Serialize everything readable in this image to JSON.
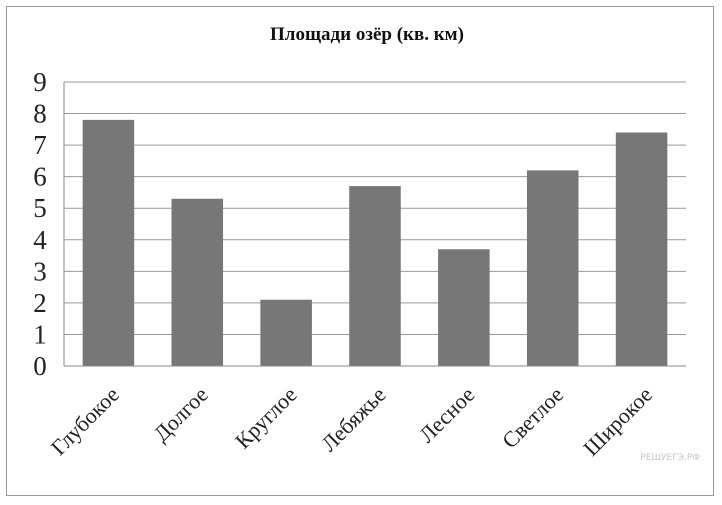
{
  "chart_data": {
    "type": "bar",
    "title": "Площади озёр (кв. км)",
    "categories": [
      "Глубокое",
      "Долгое",
      "Круглое",
      "Лебяжье",
      "Лесное",
      "Светлое",
      "Широкое"
    ],
    "values": [
      7.8,
      5.3,
      2.1,
      5.7,
      3.7,
      6.2,
      7.4
    ],
    "ylim": [
      0,
      9
    ],
    "yticks": [
      "0",
      "1",
      "2",
      "3",
      "4",
      "5",
      "6",
      "7",
      "8",
      "9"
    ],
    "xlabel": "",
    "ylabel": "",
    "grid": true,
    "bar_color": "#777777",
    "legend": "none"
  },
  "watermark": "РЕШУЕГЭ.РФ"
}
